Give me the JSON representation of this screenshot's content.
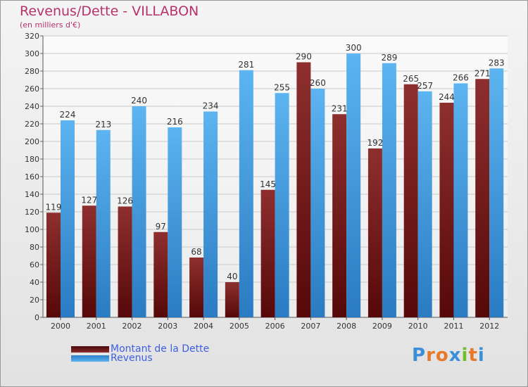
{
  "chart_data": {
    "type": "bar",
    "title": "Revenus/Dette - VILLABON",
    "subtitle": "(en milliers d'€)",
    "xlabel": "",
    "ylabel": "",
    "categories": [
      "2000",
      "2001",
      "2002",
      "2003",
      "2004",
      "2005",
      "2006",
      "2007",
      "2008",
      "2009",
      "2010",
      "2011",
      "2012"
    ],
    "series": [
      {
        "name": "Montant de la Dette",
        "color": "#7a2222",
        "values": [
          119,
          127,
          126,
          97,
          68,
          40,
          145,
          290,
          231,
          192,
          265,
          244,
          271
        ]
      },
      {
        "name": "Revenus",
        "color": "#4aa3e6",
        "values": [
          224,
          213,
          240,
          216,
          234,
          281,
          255,
          260,
          300,
          289,
          257,
          266,
          283
        ]
      }
    ],
    "ylim": [
      0,
      320
    ],
    "yticks": [
      0,
      20,
      40,
      60,
      80,
      100,
      120,
      140,
      160,
      180,
      200,
      220,
      240,
      260,
      280,
      300,
      320
    ],
    "grid": true,
    "legend_position": "bottom-left"
  },
  "legend": {
    "dette_label": "Montant de la Dette",
    "revenus_label": "Revenus",
    "dette_color": "#6b1414",
    "revenus_color": "#4aa3e6"
  },
  "logo": {
    "letters": [
      "P",
      "r",
      "o",
      "x",
      "i",
      "t",
      "i"
    ],
    "colors": [
      "#3b8fd9",
      "#e8792b",
      "#e8792b",
      "#3b8fd9",
      "#6cbf2b",
      "#e8792b",
      "#3b8fd9"
    ]
  }
}
